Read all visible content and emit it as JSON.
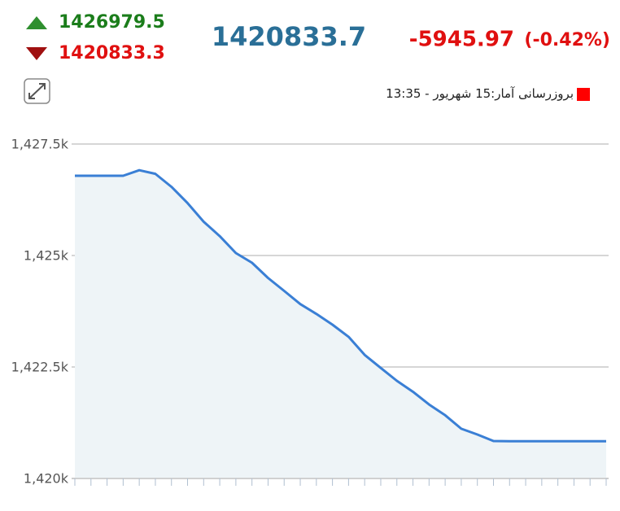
{
  "header": {
    "high": "1426979.5",
    "low": "1420833.3",
    "last": "1420833.7",
    "change": "-5945.97",
    "change_percent": "(-0.42%)"
  },
  "chart_data": {
    "type": "line",
    "legend": {
      "label": "بروزرسانی آمار:15 شهریور - 13:35",
      "color": "#ff0000"
    },
    "categories": [
      null,
      null,
      null,
      null,
      null,
      null,
      null,
      null,
      null,
      null,
      null,
      null,
      null,
      null,
      null,
      null,
      null,
      null,
      null,
      null,
      null,
      null,
      null,
      null,
      null,
      null,
      null,
      null,
      null,
      null,
      null,
      null,
      null,
      null
    ],
    "values": [
      1426788,
      1426788,
      1426788,
      1426788,
      1426913,
      1426832,
      1426540,
      1426175,
      1425758,
      1425434,
      1425055,
      1424838,
      1424496,
      1424206,
      1423911,
      1423690,
      1423449,
      1423177,
      1422771,
      1422478,
      1422190,
      1421944,
      1421659,
      1421418,
      1421115,
      1420985,
      1420839,
      1420834,
      1420834,
      1420834,
      1420834,
      1420834,
      1420834,
      1420834
    ],
    "color": "#3a7fd5",
    "area_color": "#eef4f7",
    "ylim": [
      1420000,
      1427500
    ],
    "yticks": [
      {
        "value": 1420000,
        "label": "1,420k"
      },
      {
        "value": 1422500,
        "label": "1,422.5k"
      },
      {
        "value": 1425000,
        "label": "1,425k"
      },
      {
        "value": 1427500,
        "label": "1,427.5k"
      }
    ],
    "grid": true
  }
}
